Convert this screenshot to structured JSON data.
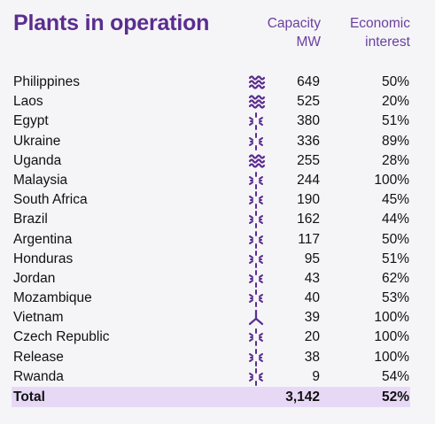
{
  "title": "Plants in operation",
  "headers": {
    "capacity": "Capacity\nMW",
    "economic": "Economic\ninterest"
  },
  "colors": {
    "accent": "#5b2d8f",
    "total_band": "#e7d9f6"
  },
  "rows": [
    {
      "name": "Philippines",
      "icon": "hydro-wave-icon",
      "capacity": "649",
      "interest": "50%"
    },
    {
      "name": "Laos",
      "icon": "hydro-wave-icon",
      "capacity": "525",
      "interest": "20%"
    },
    {
      "name": "Egypt",
      "icon": "wind-solar-icon",
      "capacity": "380",
      "interest": "51%"
    },
    {
      "name": "Ukraine",
      "icon": "wind-solar-icon",
      "capacity": "336",
      "interest": "89%"
    },
    {
      "name": "Uganda",
      "icon": "hydro-wave-icon",
      "capacity": "255",
      "interest": "28%"
    },
    {
      "name": "Malaysia",
      "icon": "wind-solar-icon",
      "capacity": "244",
      "interest": "100%"
    },
    {
      "name": "South Africa",
      "icon": "wind-solar-icon",
      "capacity": "190",
      "interest": "45%"
    },
    {
      "name": "Brazil",
      "icon": "wind-solar-icon",
      "capacity": "162",
      "interest": "44%"
    },
    {
      "name": "Argentina",
      "icon": "wind-solar-icon",
      "capacity": "117",
      "interest": "50%"
    },
    {
      "name": "Honduras",
      "icon": "wind-solar-icon",
      "capacity": "95",
      "interest": "51%"
    },
    {
      "name": "Jordan",
      "icon": "wind-solar-icon",
      "capacity": "43",
      "interest": "62%"
    },
    {
      "name": "Mozambique",
      "icon": "wind-solar-icon",
      "capacity": "40",
      "interest": "53%"
    },
    {
      "name": "Vietnam",
      "icon": "wind-turbine-icon",
      "capacity": "39",
      "interest": "100%"
    },
    {
      "name": "Czech Republic",
      "icon": "wind-solar-icon",
      "capacity": "20",
      "interest": "100%"
    },
    {
      "name": "Release",
      "icon": "wind-solar-icon",
      "capacity": "38",
      "interest": "100%"
    },
    {
      "name": "Rwanda",
      "icon": "wind-solar-icon",
      "capacity": "9",
      "interest": "54%"
    }
  ],
  "total": {
    "label": "Total",
    "capacity": "3,142",
    "interest": "52%"
  }
}
